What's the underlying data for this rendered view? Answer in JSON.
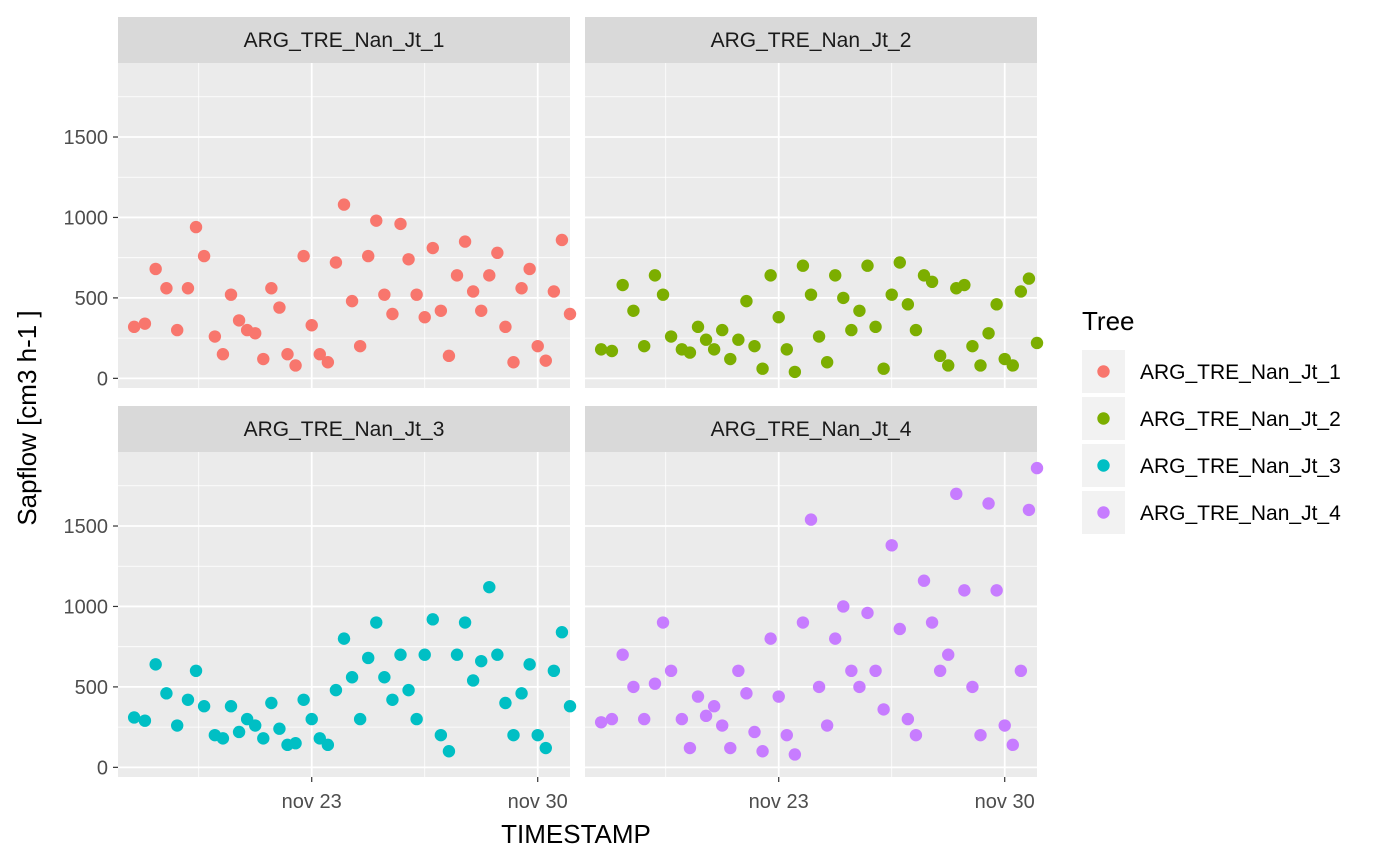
{
  "chart_data": {
    "type": "scatter",
    "xlabel": "TIMESTAMP",
    "ylabel": "Sapflow [cm3 h-1 ]",
    "x_ticks": [
      {
        "date": "2021-11-23",
        "label": "nov 23"
      },
      {
        "date": "2021-11-30",
        "label": "nov 30"
      }
    ],
    "xlim": [
      "2021-11-17",
      "2021-12-01"
    ],
    "y_ticks": [
      0,
      500,
      1000,
      1500
    ],
    "ylim": [
      -60,
      1960
    ],
    "facet_layout": "2x2",
    "grid": true,
    "legend": {
      "title": "Tree",
      "position": "right"
    },
    "panel_background": "#ebebeb",
    "strip_background": "#d9d9d9",
    "series": [
      {
        "name": "ARG_TRE_Nan_Jt_1",
        "color": "#F8766D",
        "points": [
          [
            "2021-11-17T12:00",
            320
          ],
          [
            "2021-11-17T20:00",
            340
          ],
          [
            "2021-11-18T04:00",
            680
          ],
          [
            "2021-11-18T12:00",
            560
          ],
          [
            "2021-11-18T20:00",
            300
          ],
          [
            "2021-11-19T04:00",
            560
          ],
          [
            "2021-11-19T10:00",
            940
          ],
          [
            "2021-11-19T16:00",
            760
          ],
          [
            "2021-11-20T00:00",
            260
          ],
          [
            "2021-11-20T06:00",
            150
          ],
          [
            "2021-11-20T12:00",
            520
          ],
          [
            "2021-11-20T18:00",
            360
          ],
          [
            "2021-11-21T00:00",
            300
          ],
          [
            "2021-11-21T06:00",
            280
          ],
          [
            "2021-11-21T12:00",
            120
          ],
          [
            "2021-11-21T18:00",
            560
          ],
          [
            "2021-11-22T00:00",
            440
          ],
          [
            "2021-11-22T06:00",
            150
          ],
          [
            "2021-11-22T12:00",
            80
          ],
          [
            "2021-11-22T18:00",
            760
          ],
          [
            "2021-11-23T00:00",
            330
          ],
          [
            "2021-11-23T06:00",
            150
          ],
          [
            "2021-11-23T12:00",
            100
          ],
          [
            "2021-11-23T18:00",
            720
          ],
          [
            "2021-11-24T00:00",
            1080
          ],
          [
            "2021-11-24T06:00",
            480
          ],
          [
            "2021-11-24T12:00",
            200
          ],
          [
            "2021-11-24T18:00",
            760
          ],
          [
            "2021-11-25T00:00",
            980
          ],
          [
            "2021-11-25T06:00",
            520
          ],
          [
            "2021-11-25T12:00",
            400
          ],
          [
            "2021-11-25T18:00",
            960
          ],
          [
            "2021-11-26T00:00",
            740
          ],
          [
            "2021-11-26T06:00",
            520
          ],
          [
            "2021-11-26T12:00",
            380
          ],
          [
            "2021-11-26T18:00",
            810
          ],
          [
            "2021-11-27T00:00",
            420
          ],
          [
            "2021-11-27T06:00",
            140
          ],
          [
            "2021-11-27T12:00",
            640
          ],
          [
            "2021-11-27T18:00",
            850
          ],
          [
            "2021-11-28T00:00",
            540
          ],
          [
            "2021-11-28T06:00",
            420
          ],
          [
            "2021-11-28T12:00",
            640
          ],
          [
            "2021-11-28T18:00",
            780
          ],
          [
            "2021-11-29T00:00",
            320
          ],
          [
            "2021-11-29T06:00",
            100
          ],
          [
            "2021-11-29T12:00",
            560
          ],
          [
            "2021-11-29T18:00",
            680
          ],
          [
            "2021-11-30T00:00",
            200
          ],
          [
            "2021-11-30T06:00",
            110
          ],
          [
            "2021-11-30T12:00",
            540
          ],
          [
            "2021-11-30T18:00",
            860
          ],
          [
            "2021-12-01T00:00",
            400
          ]
        ]
      },
      {
        "name": "ARG_TRE_Nan_Jt_2",
        "color": "#7CAE00",
        "points": [
          [
            "2021-11-17T12:00",
            180
          ],
          [
            "2021-11-17T20:00",
            170
          ],
          [
            "2021-11-18T04:00",
            580
          ],
          [
            "2021-11-18T12:00",
            420
          ],
          [
            "2021-11-18T20:00",
            200
          ],
          [
            "2021-11-19T04:00",
            640
          ],
          [
            "2021-11-19T10:00",
            520
          ],
          [
            "2021-11-19T16:00",
            260
          ],
          [
            "2021-11-20T00:00",
            180
          ],
          [
            "2021-11-20T06:00",
            160
          ],
          [
            "2021-11-20T12:00",
            320
          ],
          [
            "2021-11-20T18:00",
            240
          ],
          [
            "2021-11-21T00:00",
            180
          ],
          [
            "2021-11-21T06:00",
            300
          ],
          [
            "2021-11-21T12:00",
            120
          ],
          [
            "2021-11-21T18:00",
            240
          ],
          [
            "2021-11-22T00:00",
            480
          ],
          [
            "2021-11-22T06:00",
            200
          ],
          [
            "2021-11-22T12:00",
            60
          ],
          [
            "2021-11-22T18:00",
            640
          ],
          [
            "2021-11-23T00:00",
            380
          ],
          [
            "2021-11-23T06:00",
            180
          ],
          [
            "2021-11-23T12:00",
            40
          ],
          [
            "2021-11-23T18:00",
            700
          ],
          [
            "2021-11-24T00:00",
            520
          ],
          [
            "2021-11-24T06:00",
            260
          ],
          [
            "2021-11-24T12:00",
            100
          ],
          [
            "2021-11-24T18:00",
            640
          ],
          [
            "2021-11-25T00:00",
            500
          ],
          [
            "2021-11-25T06:00",
            300
          ],
          [
            "2021-11-25T12:00",
            420
          ],
          [
            "2021-11-25T18:00",
            700
          ],
          [
            "2021-11-26T00:00",
            320
          ],
          [
            "2021-11-26T06:00",
            60
          ],
          [
            "2021-11-26T12:00",
            520
          ],
          [
            "2021-11-26T18:00",
            720
          ],
          [
            "2021-11-27T00:00",
            460
          ],
          [
            "2021-11-27T06:00",
            300
          ],
          [
            "2021-11-27T12:00",
            640
          ],
          [
            "2021-11-27T18:00",
            600
          ],
          [
            "2021-11-28T00:00",
            140
          ],
          [
            "2021-11-28T06:00",
            80
          ],
          [
            "2021-11-28T12:00",
            560
          ],
          [
            "2021-11-28T18:00",
            580
          ],
          [
            "2021-11-29T00:00",
            200
          ],
          [
            "2021-11-29T06:00",
            80
          ],
          [
            "2021-11-29T12:00",
            280
          ],
          [
            "2021-11-29T18:00",
            460
          ],
          [
            "2021-11-30T00:00",
            120
          ],
          [
            "2021-11-30T06:00",
            80
          ],
          [
            "2021-11-30T12:00",
            540
          ],
          [
            "2021-11-30T18:00",
            620
          ],
          [
            "2021-12-01T00:00",
            220
          ]
        ]
      },
      {
        "name": "ARG_TRE_Nan_Jt_3",
        "color": "#00BFC4",
        "points": [
          [
            "2021-11-17T12:00",
            310
          ],
          [
            "2021-11-17T20:00",
            290
          ],
          [
            "2021-11-18T04:00",
            640
          ],
          [
            "2021-11-18T12:00",
            460
          ],
          [
            "2021-11-18T20:00",
            260
          ],
          [
            "2021-11-19T04:00",
            420
          ],
          [
            "2021-11-19T10:00",
            600
          ],
          [
            "2021-11-19T16:00",
            380
          ],
          [
            "2021-11-20T00:00",
            200
          ],
          [
            "2021-11-20T06:00",
            180
          ],
          [
            "2021-11-20T12:00",
            380
          ],
          [
            "2021-11-20T18:00",
            220
          ],
          [
            "2021-11-21T00:00",
            300
          ],
          [
            "2021-11-21T06:00",
            260
          ],
          [
            "2021-11-21T12:00",
            180
          ],
          [
            "2021-11-21T18:00",
            400
          ],
          [
            "2021-11-22T00:00",
            240
          ],
          [
            "2021-11-22T06:00",
            140
          ],
          [
            "2021-11-22T12:00",
            150
          ],
          [
            "2021-11-22T18:00",
            420
          ],
          [
            "2021-11-23T00:00",
            300
          ],
          [
            "2021-11-23T06:00",
            180
          ],
          [
            "2021-11-23T12:00",
            140
          ],
          [
            "2021-11-23T18:00",
            480
          ],
          [
            "2021-11-24T00:00",
            800
          ],
          [
            "2021-11-24T06:00",
            560
          ],
          [
            "2021-11-24T12:00",
            300
          ],
          [
            "2021-11-24T18:00",
            680
          ],
          [
            "2021-11-25T00:00",
            900
          ],
          [
            "2021-11-25T06:00",
            560
          ],
          [
            "2021-11-25T12:00",
            420
          ],
          [
            "2021-11-25T18:00",
            700
          ],
          [
            "2021-11-26T00:00",
            480
          ],
          [
            "2021-11-26T06:00",
            300
          ],
          [
            "2021-11-26T12:00",
            700
          ],
          [
            "2021-11-26T18:00",
            920
          ],
          [
            "2021-11-27T00:00",
            200
          ],
          [
            "2021-11-27T06:00",
            100
          ],
          [
            "2021-11-27T12:00",
            700
          ],
          [
            "2021-11-27T18:00",
            900
          ],
          [
            "2021-11-28T00:00",
            540
          ],
          [
            "2021-11-28T06:00",
            660
          ],
          [
            "2021-11-28T12:00",
            1120
          ],
          [
            "2021-11-28T18:00",
            700
          ],
          [
            "2021-11-29T00:00",
            400
          ],
          [
            "2021-11-29T06:00",
            200
          ],
          [
            "2021-11-29T12:00",
            460
          ],
          [
            "2021-11-29T18:00",
            640
          ],
          [
            "2021-11-30T00:00",
            200
          ],
          [
            "2021-11-30T06:00",
            120
          ],
          [
            "2021-11-30T12:00",
            600
          ],
          [
            "2021-11-30T18:00",
            840
          ],
          [
            "2021-12-01T00:00",
            380
          ]
        ]
      },
      {
        "name": "ARG_TRE_Nan_Jt_4",
        "color": "#C77CFF",
        "points": [
          [
            "2021-11-17T12:00",
            280
          ],
          [
            "2021-11-17T20:00",
            300
          ],
          [
            "2021-11-18T04:00",
            700
          ],
          [
            "2021-11-18T12:00",
            500
          ],
          [
            "2021-11-18T20:00",
            300
          ],
          [
            "2021-11-19T04:00",
            520
          ],
          [
            "2021-11-19T10:00",
            900
          ],
          [
            "2021-11-19T16:00",
            600
          ],
          [
            "2021-11-20T00:00",
            300
          ],
          [
            "2021-11-20T06:00",
            120
          ],
          [
            "2021-11-20T12:00",
            440
          ],
          [
            "2021-11-20T18:00",
            320
          ],
          [
            "2021-11-21T00:00",
            380
          ],
          [
            "2021-11-21T06:00",
            260
          ],
          [
            "2021-11-21T12:00",
            120
          ],
          [
            "2021-11-21T18:00",
            600
          ],
          [
            "2021-11-22T00:00",
            460
          ],
          [
            "2021-11-22T06:00",
            220
          ],
          [
            "2021-11-22T12:00",
            100
          ],
          [
            "2021-11-22T18:00",
            800
          ],
          [
            "2021-11-23T00:00",
            440
          ],
          [
            "2021-11-23T06:00",
            200
          ],
          [
            "2021-11-23T12:00",
            80
          ],
          [
            "2021-11-23T18:00",
            900
          ],
          [
            "2021-11-24T00:00",
            1540
          ],
          [
            "2021-11-24T06:00",
            500
          ],
          [
            "2021-11-24T12:00",
            260
          ],
          [
            "2021-11-24T18:00",
            800
          ],
          [
            "2021-11-25T00:00",
            1000
          ],
          [
            "2021-11-25T06:00",
            600
          ],
          [
            "2021-11-25T12:00",
            500
          ],
          [
            "2021-11-25T18:00",
            960
          ],
          [
            "2021-11-26T00:00",
            600
          ],
          [
            "2021-11-26T06:00",
            360
          ],
          [
            "2021-11-26T12:00",
            1380
          ],
          [
            "2021-11-26T18:00",
            860
          ],
          [
            "2021-11-27T00:00",
            300
          ],
          [
            "2021-11-27T06:00",
            200
          ],
          [
            "2021-11-27T12:00",
            1160
          ],
          [
            "2021-11-27T18:00",
            900
          ],
          [
            "2021-11-28T00:00",
            600
          ],
          [
            "2021-11-28T06:00",
            700
          ],
          [
            "2021-11-28T12:00",
            1700
          ],
          [
            "2021-11-28T18:00",
            1100
          ],
          [
            "2021-11-29T00:00",
            500
          ],
          [
            "2021-11-29T06:00",
            200
          ],
          [
            "2021-11-29T12:00",
            1640
          ],
          [
            "2021-11-29T18:00",
            1100
          ],
          [
            "2021-11-30T00:00",
            260
          ],
          [
            "2021-11-30T06:00",
            140
          ],
          [
            "2021-11-30T12:00",
            600
          ],
          [
            "2021-11-30T18:00",
            1600
          ],
          [
            "2021-12-01T00:00",
            1860
          ]
        ]
      }
    ]
  }
}
